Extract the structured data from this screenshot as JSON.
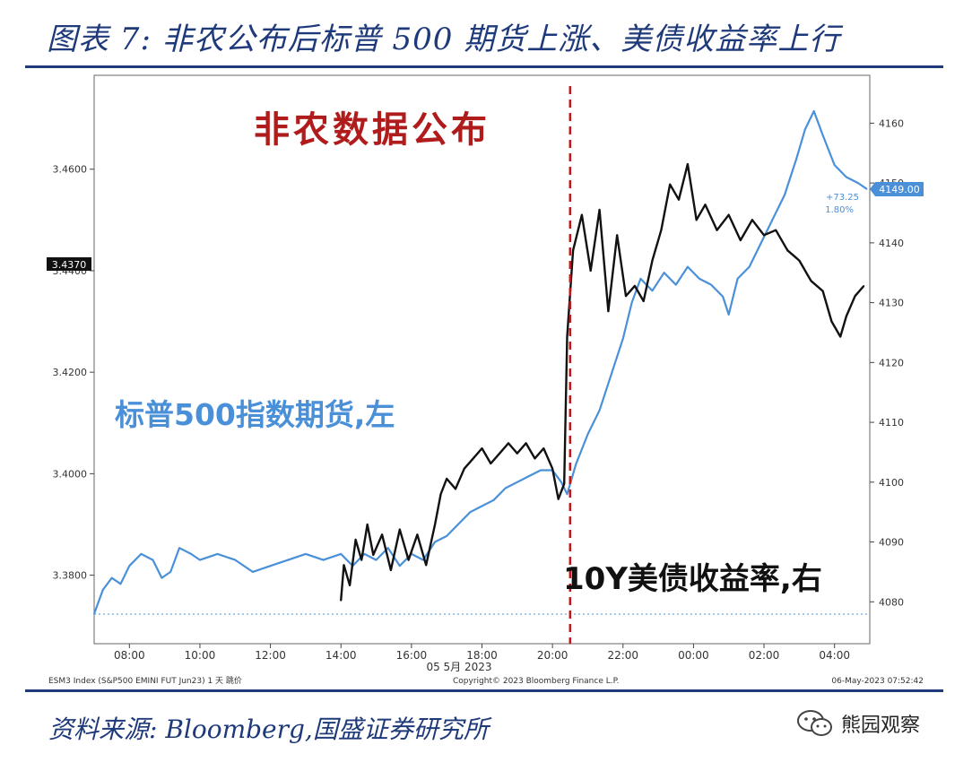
{
  "header": {
    "title": "图表 7:  非农公布后标普 500 期货上涨、美债收益率上行"
  },
  "footer": {
    "source": "资料来源:  Bloomberg,国盛证券研究所",
    "watermark": "熊园观察"
  },
  "chart_data": {
    "type": "line",
    "event_label": "非农数据公布",
    "x_ticks": [
      "08:00",
      "10:00",
      "12:00",
      "14:00",
      "16:00",
      "18:00",
      "20:00",
      "22:00",
      "00:00",
      "02:00",
      "04:00"
    ],
    "x_date_label": "05 5月 2023",
    "left_axis": {
      "ticks": [
        "3.3800",
        "3.4000",
        "3.4200",
        "3.4400",
        "3.4600"
      ],
      "range": [
        3.3665,
        3.4785
      ]
    },
    "right_axis": {
      "ticks": [
        "4080",
        "4090",
        "4100",
        "4110",
        "4120",
        "4130",
        "4140",
        "4150",
        "4160"
      ],
      "range": [
        4073,
        4168
      ]
    },
    "left_current_label": "3.4370",
    "right_current_label": "4149.00",
    "change_labels": [
      "+73.25",
      "1.80%"
    ],
    "footer_left": "ESM3 Index (S&P500 EMINI FUT  Jun23) 1 天  跳价",
    "footer_center": "Copyright© 2023 Bloomberg Finance L.P.",
    "footer_right": "06-May-2023  07:52:42",
    "series": [
      {
        "name": "标普500指数期货,左",
        "axis": "right",
        "color": "#4a90d9",
        "points": [
          [
            "07:00",
            4078
          ],
          [
            "07:15",
            4082
          ],
          [
            "07:30",
            4084
          ],
          [
            "07:45",
            4083
          ],
          [
            "08:00",
            4086
          ],
          [
            "08:20",
            4088
          ],
          [
            "08:40",
            4087
          ],
          [
            "08:55",
            4084
          ],
          [
            "09:10",
            4085
          ],
          [
            "09:25",
            4089
          ],
          [
            "09:45",
            4088
          ],
          [
            "10:00",
            4087
          ],
          [
            "10:30",
            4088
          ],
          [
            "11:00",
            4087
          ],
          [
            "11:30",
            4085
          ],
          [
            "12:00",
            4086
          ],
          [
            "12:30",
            4087
          ],
          [
            "13:00",
            4088
          ],
          [
            "13:30",
            4087
          ],
          [
            "14:00",
            4088
          ],
          [
            "14:20",
            4086
          ],
          [
            "14:40",
            4088
          ],
          [
            "15:00",
            4087
          ],
          [
            "15:20",
            4089
          ],
          [
            "15:40",
            4086
          ],
          [
            "16:00",
            4088
          ],
          [
            "16:20",
            4087
          ],
          [
            "16:40",
            4090
          ],
          [
            "17:00",
            4091
          ],
          [
            "17:20",
            4093
          ],
          [
            "17:40",
            4095
          ],
          [
            "18:00",
            4096
          ],
          [
            "18:20",
            4097
          ],
          [
            "18:40",
            4099
          ],
          [
            "19:00",
            4100
          ],
          [
            "19:20",
            4101
          ],
          [
            "19:40",
            4102
          ],
          [
            "20:00",
            4102
          ],
          [
            "20:15",
            4100
          ],
          [
            "20:25",
            4098
          ],
          [
            "20:40",
            4103
          ],
          [
            "21:00",
            4108
          ],
          [
            "21:20",
            4112
          ],
          [
            "21:40",
            4118
          ],
          [
            "22:00",
            4124
          ],
          [
            "22:15",
            4130
          ],
          [
            "22:30",
            4134
          ],
          [
            "22:50",
            4132
          ],
          [
            "23:10",
            4135
          ],
          [
            "23:30",
            4133
          ],
          [
            "23:50",
            4136
          ],
          [
            "00:10",
            4134
          ],
          [
            "00:30",
            4133
          ],
          [
            "00:50",
            4131
          ],
          [
            "01:00",
            4128
          ],
          [
            "01:15",
            4134
          ],
          [
            "01:35",
            4136
          ],
          [
            "01:55",
            4140
          ],
          [
            "02:15",
            4144
          ],
          [
            "02:35",
            4148
          ],
          [
            "02:55",
            4154
          ],
          [
            "03:10",
            4159
          ],
          [
            "03:25",
            4162
          ],
          [
            "03:40",
            4158
          ],
          [
            "04:00",
            4153
          ],
          [
            "04:20",
            4151
          ],
          [
            "04:40",
            4150
          ],
          [
            "04:55",
            4149
          ]
        ]
      },
      {
        "name": "10Y美债收益率,右",
        "axis": "left",
        "color": "#111111",
        "points": [
          [
            "14:00",
            3.375
          ],
          [
            "14:05",
            3.382
          ],
          [
            "14:15",
            3.378
          ],
          [
            "14:25",
            3.387
          ],
          [
            "14:35",
            3.383
          ],
          [
            "14:45",
            3.39
          ],
          [
            "14:55",
            3.384
          ],
          [
            "15:10",
            3.388
          ],
          [
            "15:25",
            3.381
          ],
          [
            "15:40",
            3.389
          ],
          [
            "15:55",
            3.383
          ],
          [
            "16:10",
            3.388
          ],
          [
            "16:25",
            3.382
          ],
          [
            "16:40",
            3.39
          ],
          [
            "16:50",
            3.396
          ],
          [
            "17:00",
            3.399
          ],
          [
            "17:15",
            3.397
          ],
          [
            "17:30",
            3.401
          ],
          [
            "17:45",
            3.403
          ],
          [
            "18:00",
            3.405
          ],
          [
            "18:15",
            3.402
          ],
          [
            "18:30",
            3.404
          ],
          [
            "18:45",
            3.406
          ],
          [
            "19:00",
            3.404
          ],
          [
            "19:15",
            3.406
          ],
          [
            "19:30",
            3.403
          ],
          [
            "19:45",
            3.405
          ],
          [
            "20:00",
            3.401
          ],
          [
            "20:10",
            3.395
          ],
          [
            "20:20",
            3.398
          ],
          [
            "20:25",
            3.427
          ],
          [
            "20:35",
            3.444
          ],
          [
            "20:50",
            3.451
          ],
          [
            "21:05",
            3.44
          ],
          [
            "21:20",
            3.452
          ],
          [
            "21:35",
            3.432
          ],
          [
            "21:50",
            3.447
          ],
          [
            "22:05",
            3.435
          ],
          [
            "22:20",
            3.437
          ],
          [
            "22:35",
            3.434
          ],
          [
            "22:50",
            3.442
          ],
          [
            "23:05",
            3.448
          ],
          [
            "23:20",
            3.457
          ],
          [
            "23:35",
            3.454
          ],
          [
            "23:50",
            3.461
          ],
          [
            "00:05",
            3.45
          ],
          [
            "00:20",
            3.453
          ],
          [
            "00:40",
            3.448
          ],
          [
            "01:00",
            3.451
          ],
          [
            "01:20",
            3.446
          ],
          [
            "01:40",
            3.45
          ],
          [
            "02:00",
            3.447
          ],
          [
            "02:20",
            3.448
          ],
          [
            "02:40",
            3.444
          ],
          [
            "03:00",
            3.442
          ],
          [
            "03:20",
            3.438
          ],
          [
            "03:40",
            3.436
          ],
          [
            "03:55",
            3.43
          ],
          [
            "04:10",
            3.427
          ],
          [
            "04:20",
            3.431
          ],
          [
            "04:35",
            3.435
          ],
          [
            "04:50",
            3.437
          ]
        ]
      }
    ]
  }
}
